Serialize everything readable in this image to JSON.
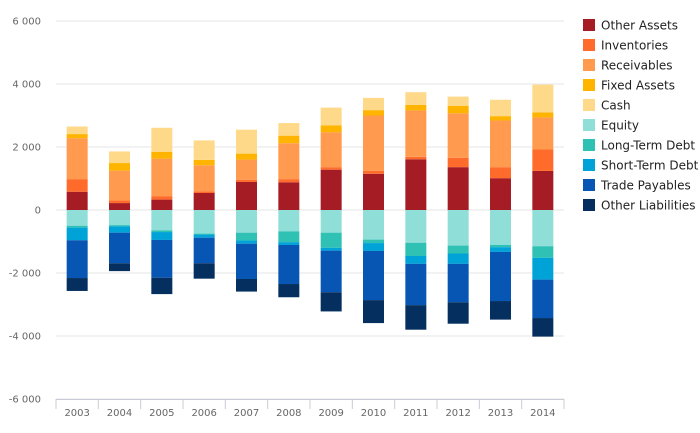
{
  "chart_data": {
    "type": "bar",
    "stacked": true,
    "categories": [
      "2003",
      "2004",
      "2005",
      "2006",
      "2007",
      "2008",
      "2009",
      "2010",
      "2011",
      "2012",
      "2013",
      "2014"
    ],
    "ylim": [
      -6000,
      6000
    ],
    "yticks": [
      6000,
      4000,
      2000,
      0,
      -2000,
      -4000,
      -6000
    ],
    "ytick_labels": [
      "6 000",
      "4 000",
      "2 000",
      "0",
      "-2 000",
      "-4 000",
      "-6 000"
    ],
    "grid": true,
    "legend_position": "right",
    "series": [
      {
        "name": "Other Assets",
        "color": "#a51c24",
        "group": "positive",
        "values": [
          580,
          220,
          330,
          540,
          890,
          880,
          1280,
          1150,
          1610,
          1360,
          1010,
          1240
        ]
      },
      {
        "name": "Inventories",
        "color": "#ff6b2b",
        "group": "positive",
        "values": [
          400,
          80,
          110,
          50,
          70,
          100,
          80,
          90,
          80,
          300,
          350,
          680
        ]
      },
      {
        "name": "Receivables",
        "color": "#ff9a4e",
        "group": "positive",
        "values": [
          1300,
          950,
          1190,
          830,
          640,
          1140,
          1110,
          1760,
          1470,
          1410,
          1480,
          1020
        ]
      },
      {
        "name": "Fixed Assets",
        "color": "#ffb400",
        "group": "positive",
        "values": [
          130,
          240,
          220,
          170,
          190,
          240,
          220,
          170,
          180,
          240,
          140,
          160
        ]
      },
      {
        "name": "Cash",
        "color": "#ffd98a",
        "group": "positive",
        "values": [
          240,
          370,
          760,
          620,
          760,
          400,
          560,
          390,
          400,
          290,
          520,
          880
        ]
      },
      {
        "name": "Equity",
        "color": "#8fded8",
        "group": "negative",
        "values": [
          -500,
          -480,
          -650,
          -750,
          -720,
          -680,
          -720,
          -940,
          -1040,
          -1130,
          -1110,
          -1150
        ]
      },
      {
        "name": "Long-Term Debt",
        "color": "#2fc1b4",
        "group": "negative",
        "values": [
          -60,
          -40,
          -50,
          -30,
          -250,
          -340,
          -480,
          -110,
          -420,
          -250,
          -70,
          -370
        ]
      },
      {
        "name": "Short-Term Debt",
        "color": "#00a3d7",
        "group": "negative",
        "values": [
          -400,
          -200,
          -250,
          -100,
          -100,
          -90,
          -90,
          -250,
          -250,
          -330,
          -150,
          -690
        ]
      },
      {
        "name": "Trade Payables",
        "color": "#0856b3",
        "group": "negative",
        "values": [
          -1200,
          -970,
          -1200,
          -810,
          -1120,
          -1240,
          -1320,
          -1560,
          -1310,
          -1220,
          -1560,
          -1220
        ]
      },
      {
        "name": "Other Liabilities",
        "color": "#052f5f",
        "group": "negative",
        "values": [
          -410,
          -250,
          -520,
          -490,
          -400,
          -420,
          -610,
          -730,
          -780,
          -680,
          -590,
          -590
        ]
      }
    ]
  }
}
